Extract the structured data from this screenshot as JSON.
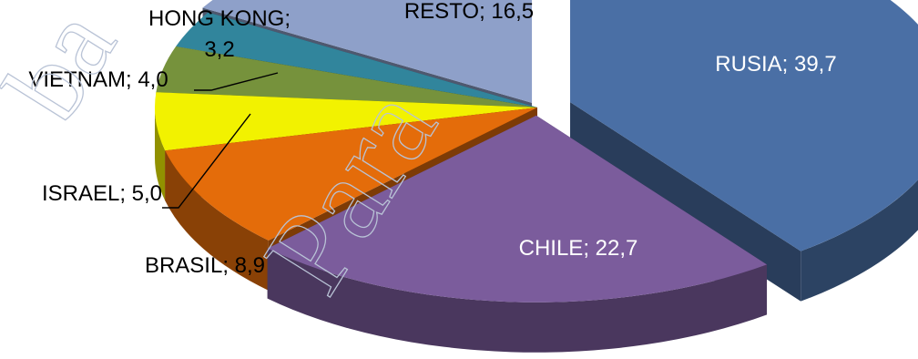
{
  "chart_data": {
    "type": "pie",
    "style": "3d-exploded",
    "legend": "none",
    "slices": [
      {
        "name": "RUSIA",
        "value": 39.7,
        "label": "RUSIA; 39,7",
        "color": "#4a6fa5",
        "label_color": "#ffffff",
        "label_position": "inside"
      },
      {
        "name": "CHILE",
        "value": 22.7,
        "label": "CHILE; 22,7",
        "color": "#7b5c9c",
        "label_color": "#ffffff",
        "label_position": "inside"
      },
      {
        "name": "BRASIL",
        "value": 8.9,
        "label": "BRASIL; 8,9",
        "color": "#e46c0a",
        "label_color": "#000000",
        "label_position": "outside"
      },
      {
        "name": "ISRAEL",
        "value": 5.0,
        "label": "ISRAEL; 5,0",
        "color": "#f2f200",
        "label_color": "#000000",
        "label_position": "outside-leader"
      },
      {
        "name": "VIETNAM",
        "value": 4.0,
        "label": "VIETNAM; 4,0",
        "color": "#76923c",
        "label_color": "#000000",
        "label_position": "outside-leader"
      },
      {
        "name": "HONG KONG",
        "value": 3.2,
        "label_lines": [
          "HONG KONG;",
          "3,2"
        ],
        "color": "#31859c",
        "label_color": "#000000",
        "label_position": "outside"
      },
      {
        "name": "RESTO",
        "value": 16.5,
        "label": "RESTO; 16,5",
        "color": "#8ea0c9",
        "label_color": "#000000",
        "label_position": "inside"
      }
    ]
  },
  "watermark": {
    "text": "Para",
    "text_fragment": "ba",
    "color": "#d7dde8"
  }
}
